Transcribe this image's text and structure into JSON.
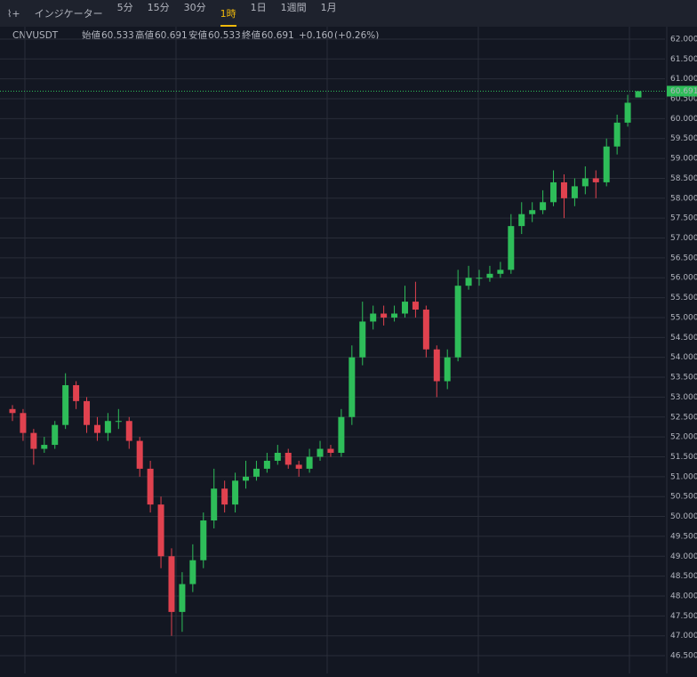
{
  "toolbar": {
    "indicator": "インジケーター",
    "intervals": [
      "5分",
      "15分",
      "30分",
      "1時",
      "1日",
      "1週間",
      "1月"
    ],
    "active": 3
  },
  "header": {
    "symbol": "CNVUSDT",
    "open_label": "始値",
    "high_label": "高値",
    "low_label": "安値",
    "close_label": "終値",
    "change": "+0.160",
    "change_pct": "(+0.26%)"
  },
  "chart_data": {
    "type": "candlestick",
    "up_color": "#2ebd59",
    "down_color": "#e0424f",
    "grid": true,
    "open": [
      52.7,
      52.6,
      52.1,
      51.7,
      51.8,
      52.3,
      53.3,
      52.9,
      52.3,
      52.1,
      52.4,
      52.4,
      51.9,
      51.2,
      50.3,
      49.0,
      47.6,
      48.3,
      48.9,
      49.9,
      50.7,
      50.3,
      50.9,
      51.0,
      51.2,
      51.4,
      51.6,
      51.3,
      51.2,
      51.5,
      51.7,
      51.6,
      52.5,
      54.0,
      54.9,
      55.1,
      55.0,
      55.1,
      55.4,
      55.2,
      54.2,
      53.4,
      54.0,
      55.8,
      56.0,
      56.0,
      56.1,
      56.2,
      57.3,
      57.6,
      57.7,
      57.9,
      58.4,
      58.0,
      58.3,
      58.5,
      58.4,
      59.3,
      59.9,
      60.533
    ],
    "high": [
      52.8,
      52.7,
      52.2,
      52.0,
      52.4,
      53.6,
      53.4,
      53.0,
      52.5,
      52.6,
      52.7,
      52.5,
      52.0,
      51.4,
      50.5,
      49.2,
      48.6,
      49.3,
      50.1,
      51.2,
      50.9,
      51.1,
      51.4,
      51.4,
      51.6,
      51.8,
      51.7,
      51.4,
      51.7,
      51.9,
      51.8,
      52.7,
      54.3,
      55.4,
      55.3,
      55.3,
      55.3,
      55.8,
      55.9,
      55.3,
      54.3,
      54.2,
      56.2,
      56.3,
      56.2,
      56.3,
      56.4,
      57.6,
      57.9,
      57.9,
      58.2,
      58.7,
      58.6,
      58.5,
      58.8,
      58.7,
      59.5,
      60.1,
      60.6,
      60.691
    ],
    "low": [
      52.4,
      51.9,
      51.3,
      51.6,
      51.7,
      52.2,
      52.7,
      52.1,
      51.9,
      51.9,
      52.2,
      51.7,
      51.0,
      50.1,
      48.7,
      47.0,
      47.1,
      48.1,
      48.7,
      49.7,
      50.1,
      50.1,
      50.7,
      50.9,
      51.1,
      51.3,
      51.2,
      51.0,
      51.1,
      51.4,
      51.5,
      51.5,
      52.3,
      53.8,
      54.7,
      54.8,
      54.9,
      55.0,
      55.0,
      54.0,
      53.0,
      53.2,
      53.9,
      55.7,
      55.8,
      55.9,
      56.0,
      56.1,
      57.1,
      57.4,
      57.6,
      57.8,
      57.5,
      57.8,
      58.1,
      58.0,
      58.3,
      59.1,
      59.8,
      60.533
    ],
    "close": [
      52.6,
      52.1,
      51.7,
      51.8,
      52.3,
      53.3,
      52.9,
      52.3,
      52.1,
      52.4,
      52.4,
      51.9,
      51.2,
      50.3,
      49.0,
      47.6,
      48.3,
      48.9,
      49.9,
      50.7,
      50.3,
      50.9,
      51.0,
      51.2,
      51.4,
      51.6,
      51.3,
      51.2,
      51.5,
      51.7,
      51.6,
      52.5,
      54.0,
      54.9,
      55.1,
      55.0,
      55.1,
      55.4,
      55.2,
      54.2,
      53.4,
      54.0,
      55.8,
      56.0,
      56.0,
      56.1,
      56.2,
      57.3,
      57.6,
      57.7,
      57.9,
      58.4,
      58.0,
      58.3,
      58.5,
      58.4,
      59.3,
      59.9,
      60.4,
      60.691
    ],
    "ylim": [
      46.3,
      62.2
    ],
    "yticks": [
      {
        "value": 46.5,
        "label": "46.500"
      },
      {
        "value": 47,
        "label": "47.000"
      },
      {
        "value": 47.5,
        "label": "47.500"
      },
      {
        "value": 48,
        "label": "48.000"
      },
      {
        "value": 48.5,
        "label": "48.500"
      },
      {
        "value": 49,
        "label": "49.000"
      },
      {
        "value": 49.5,
        "label": "49.500"
      },
      {
        "value": 50,
        "label": "50.000"
      },
      {
        "value": 50.5,
        "label": "50.500"
      },
      {
        "value": 51,
        "label": "51.000"
      },
      {
        "value": 51.5,
        "label": "51.500"
      },
      {
        "value": 52,
        "label": "52.000"
      },
      {
        "value": 52.5,
        "label": "52.500"
      },
      {
        "value": 53,
        "label": "53.000"
      },
      {
        "value": 53.5,
        "label": "53.500"
      },
      {
        "value": 54,
        "label": "54.000"
      },
      {
        "value": 54.5,
        "label": "54.500"
      },
      {
        "value": 55,
        "label": "55.000"
      },
      {
        "value": 55.5,
        "label": "55.500"
      },
      {
        "value": 56,
        "label": "56.000"
      },
      {
        "value": 56.5,
        "label": "56.500"
      },
      {
        "value": 57,
        "label": "57.000"
      },
      {
        "value": 57.5,
        "label": "57.500"
      },
      {
        "value": 58,
        "label": "58.000"
      },
      {
        "value": 58.5,
        "label": "58.500"
      },
      {
        "value": 59,
        "label": "59.000"
      },
      {
        "value": 59.5,
        "label": "59.500"
      },
      {
        "value": 60,
        "label": "60.000"
      },
      {
        "value": 60.5,
        "label": "60.500"
      },
      {
        "value": 61,
        "label": "61.000"
      },
      {
        "value": 61.5,
        "label": "61.500"
      },
      {
        "value": 62,
        "label": "62.000"
      }
    ]
  }
}
